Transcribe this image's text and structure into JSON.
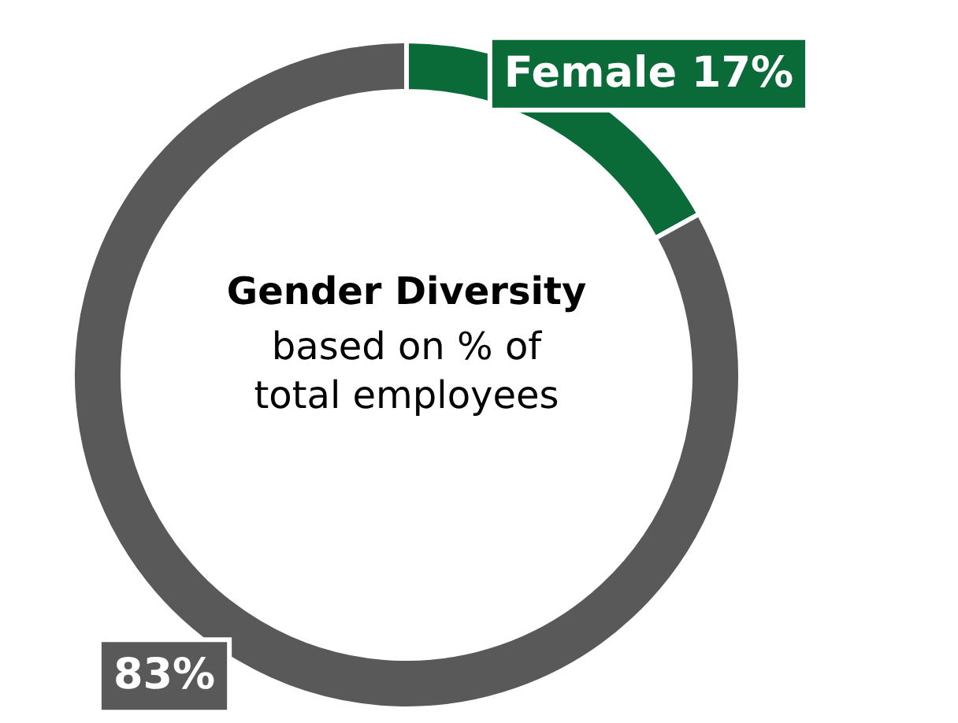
{
  "chart_data": {
    "type": "donut",
    "title": "Gender Diversity",
    "subtitle": "based on % of\ntotal employees",
    "categories": [
      "Female",
      null
    ],
    "values": [
      17,
      83
    ],
    "colors": [
      "#0b6b38",
      "#595959"
    ],
    "value_labels": [
      "17%",
      "83%"
    ]
  }
}
